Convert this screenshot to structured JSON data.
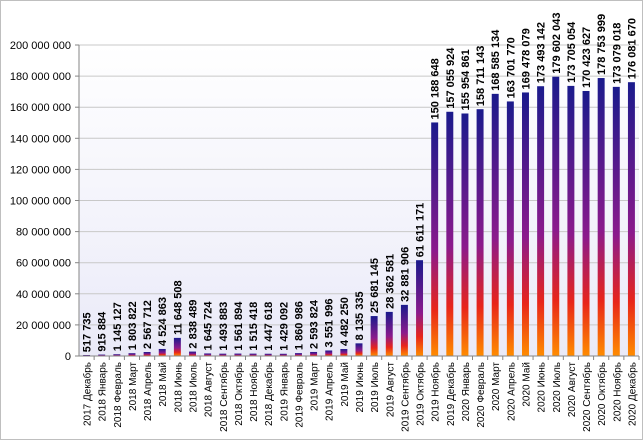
{
  "chart_data": {
    "type": "bar",
    "title": "",
    "xlabel": "",
    "ylabel": "",
    "ylim": [
      0,
      200000000
    ],
    "y_ticks": [
      0,
      20000000,
      40000000,
      60000000,
      80000000,
      100000000,
      120000000,
      140000000,
      160000000,
      180000000,
      200000000
    ],
    "y_tick_labels": [
      "0",
      "20 000 000",
      "40 000 000",
      "60 000 000",
      "80 000 000",
      "100 000 000",
      "120 000 000",
      "140 000 000",
      "160 000 000",
      "180 000 000",
      "200 000 000"
    ],
    "grid": true,
    "legend": "none",
    "colors": {
      "bar_top": "#1a1a8c",
      "bar_bottom": "#ff8c00",
      "plot_background": "#eaeaf8"
    },
    "categories": [
      "2017 Декабрь",
      "2018 Январь",
      "2018 Февраль",
      "2018 Март",
      "2018 Апрель",
      "2018 Май",
      "2018 Июнь",
      "2018 Июль",
      "2018 Август",
      "2018 Сентябрь",
      "2018 Октябрь",
      "2018 Ноябрь",
      "2018 Декабрь",
      "2019 Январь",
      "2019 Февраль",
      "2019 Март",
      "2019 Апрель",
      "2019 Май",
      "2019 Июнь",
      "2019 Июль",
      "2019 Август",
      "2019 Сентябрь",
      "2019 Октябрь",
      "2019 Ноябрь",
      "2019 Декабрь",
      "2020 Январь",
      "2020 Февраль",
      "2020 Март",
      "2020 Апрель",
      "2020 Май",
      "2020 Июнь",
      "2020 Июль",
      "2020 Август",
      "2020 Сентябрь",
      "2020 Октябрь",
      "2020 Ноябрь",
      "2020 Декабрь"
    ],
    "values": [
      517735,
      915884,
      1145127,
      1803822,
      2567712,
      4524863,
      11648508,
      2838489,
      1645724,
      1493883,
      1561894,
      1515418,
      1447618,
      1429092,
      1860986,
      2593824,
      3551996,
      4482250,
      8135335,
      25681145,
      28362581,
      32881906,
      61611171,
      150188648,
      157055924,
      155954861,
      158711143,
      168585134,
      163701770,
      169478079,
      173493142,
      179602043,
      173705054,
      170423627,
      178753999,
      173079018,
      176081670
    ],
    "data_labels": [
      "517 735",
      "915 884",
      "1 145 127",
      "1 803 822",
      "2 567 712",
      "4 524 863",
      "11 648 508",
      "2 838 489",
      "1 645 724",
      "1 493 883",
      "1 561 894",
      "1 515 418",
      "1 447 618",
      "1 429 092",
      "1 860 986",
      "2 593 824",
      "3 551 996",
      "4 482 250",
      "8 135 335",
      "25 681 145",
      "28 362 581",
      "32 881 906",
      "61 611 171",
      "150 188 648",
      "157 055 924",
      "155 954 861",
      "158 711 143",
      "168 585 134",
      "163 701 770",
      "169 478 079",
      "173 493 142",
      "179 602 043",
      "173 705 054",
      "170 423 627",
      "178 753 999",
      "173 079 018",
      "176 081 670"
    ]
  }
}
